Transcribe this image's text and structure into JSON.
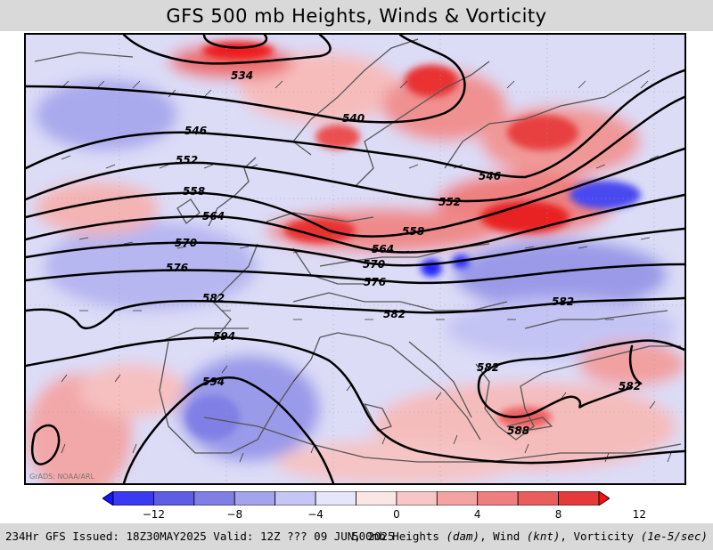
{
  "title": "GFS 500 mb Heights, Winds & Vorticity",
  "credit": "GrADS: NOAA/ARL",
  "contour_labels": [
    "534",
    "540",
    "546",
    "546",
    "552",
    "552",
    "558",
    "558",
    "564",
    "564",
    "570",
    "570",
    "576",
    "576",
    "582",
    "582",
    "582",
    "582",
    "582",
    "588",
    "594"
  ],
  "colorbar": {
    "colors": [
      "#1414ff",
      "#3a3af0",
      "#5d5de6",
      "#7f7fe6",
      "#a3a3ee",
      "#c6c6f6",
      "#e6e6fb",
      "#fbe6e6",
      "#f8c6c6",
      "#f4a3a3",
      "#ef7f7f",
      "#ea5d5d",
      "#e63a3a",
      "#f01414"
    ],
    "tick_labels": [
      "−12",
      "−8",
      "−4",
      "0",
      "4",
      "8",
      "12"
    ]
  },
  "footer": {
    "left": "234Hr GFS Issued: 18Z30MAY2025 Valid: 12Z ??? 09 JUN, 2025",
    "right_prefix": "500mb Heights ",
    "right_unit1": "(dam)",
    "right_mid1": ", Wind ",
    "right_unit2": "(knt)",
    "right_mid2": ", Vorticity ",
    "right_unit3": "(1e-5/sec)"
  }
}
